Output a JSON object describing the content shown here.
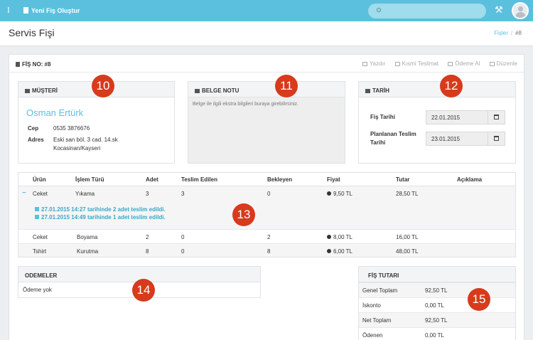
{
  "topbar": {
    "menu_icon": "⁞",
    "new_receipt_label": "Yeni Fiş Oluştur",
    "search_icon": "search-icon",
    "tools_icon": "⚒"
  },
  "page": {
    "title": "Servis Fişi",
    "breadcrumb": {
      "parent": "Fişler",
      "separator": "/",
      "current": "#8"
    }
  },
  "receipt": {
    "number_label": "FİŞ NO: #8",
    "actions": [
      "Yazdır",
      "Kısmi Teslimat",
      "Ödeme Al",
      "Düzenle"
    ]
  },
  "customer": {
    "heading": "MÜŞTERİ",
    "name": "Osman Ertürk",
    "phone_label": "Cep",
    "phone": "0535 3876676",
    "address_label": "Adres",
    "address_line1": "Eski san böl. 3 cad. 14.sk",
    "address_line2": "Kocasinan/Kayseri"
  },
  "note": {
    "heading": "BELGE NOTU",
    "placeholder": "Belge ile ilgili ekstra bilgileri buraya girebilirsiniz."
  },
  "dates": {
    "heading": "TARİH",
    "receipt_date_label": "Fiş Tarihi",
    "receipt_date": "22.01.2015",
    "planned_label_line1": "Planlanan Teslim",
    "planned_label_line2": "Tarihi",
    "planned_date": "23.01.2015"
  },
  "items": {
    "headers": [
      "Ürün",
      "İşlem Türü",
      "Adet",
      "Teslim Edilen",
      "Bekleyen",
      "Fiyat",
      "Tutar",
      "Açıklama"
    ],
    "rows": [
      {
        "expand": "−",
        "product": "Ceket",
        "operation": "Yıkama",
        "qty": "3",
        "delivered": "3",
        "pending": "0",
        "price": "9,50 TL",
        "total": "28,50 TL"
      },
      {
        "product": "Ceket",
        "operation": "Boyama",
        "qty": "2",
        "delivered": "0",
        "pending": "2",
        "price": "8,00 TL",
        "total": "16,00 TL"
      },
      {
        "product": "Tshirt",
        "operation": "Kurutma",
        "qty": "8",
        "delivered": "0",
        "pending": "8",
        "price": "6,00 TL",
        "total": "48,00 TL"
      }
    ],
    "deliveries": [
      "27.01.2015 14:27 tarihinde 2 adet teslim edildi.",
      "27.01.2015 14:49 tarihinde 1 adet teslim edildi."
    ]
  },
  "payments": {
    "heading": "ODEMELER",
    "empty": "Ödeme yok"
  },
  "totals": {
    "heading": "FİŞ TUTARI",
    "rows": [
      {
        "label": "Genel Toplam",
        "value": "92,50 TL"
      },
      {
        "label": "İskonto",
        "value": "0,00 TL"
      },
      {
        "label": "Net Toplam",
        "value": "92,50 TL"
      },
      {
        "label": "Ödenen",
        "value": "0,00 TL"
      }
    ]
  },
  "callouts": [
    "10",
    "11",
    "12",
    "13",
    "14",
    "15"
  ],
  "colors": {
    "accent": "#5bc0de",
    "callout": "#d73a1c"
  }
}
